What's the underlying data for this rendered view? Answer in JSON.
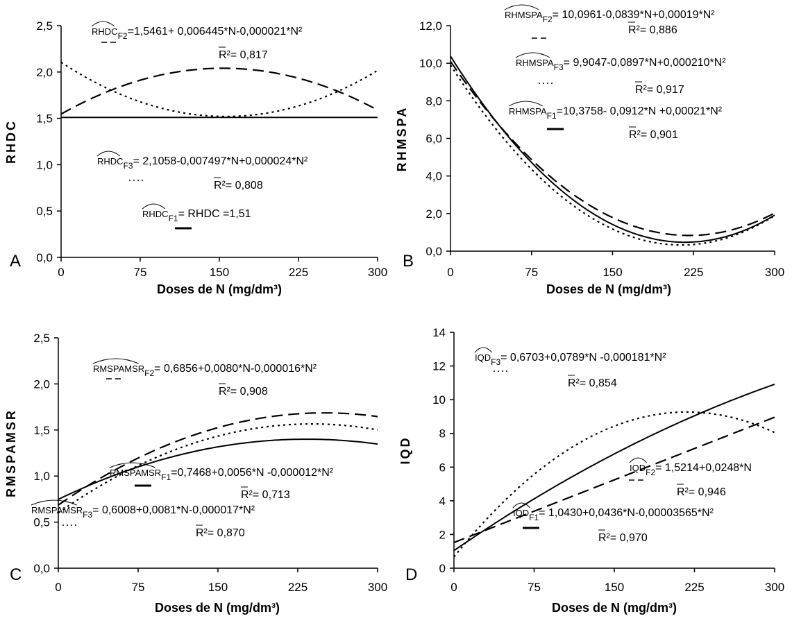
{
  "figure": {
    "xlabel": "Doses de N (mg/dm³)"
  },
  "chart_data": [
    {
      "panel": "A",
      "type": "line",
      "ylabel": "RHDC",
      "xlim": [
        0,
        300
      ],
      "ylim": [
        0,
        2.5
      ],
      "xticks": [
        "0",
        "75",
        "150",
        "225",
        "300"
      ],
      "yticks": [
        "0,0",
        "0,5",
        "1,0",
        "1,5",
        "2,0",
        "2,5"
      ],
      "xlabel": "Doses de N (mg/dm³)",
      "series": [
        {
          "name": "F1",
          "style": "solid",
          "coef": [
            1.51,
            0,
            0
          ]
        },
        {
          "name": "F2",
          "style": "dashed",
          "coef": [
            1.5461,
            0.006445,
            -2.1e-05
          ]
        },
        {
          "name": "F3",
          "style": "dotted",
          "coef": [
            2.1058,
            -0.007497,
            2.4e-05
          ]
        }
      ],
      "annotations": [
        {
          "series": "F2",
          "hat": "RHDC",
          "sub": "F2",
          "eq": "=1,5461+ 0,006445*N-0,000021*N²",
          "r2": "= 0,817"
        },
        {
          "series": "F3",
          "hat": "RHDC",
          "sub": "F3",
          "eq": "= 2,1058-0,007497*N+0,000024*N²",
          "r2": "= 0,808"
        },
        {
          "series": "F1",
          "hat": "RHDC",
          "sub": "F1",
          "eq": "= RHDC =1,51"
        }
      ]
    },
    {
      "panel": "B",
      "type": "line",
      "ylabel": "RHMSPA",
      "xlim": [
        0,
        300
      ],
      "ylim": [
        0,
        12
      ],
      "xticks": [
        "0",
        "75",
        "150",
        "225",
        "300"
      ],
      "yticks": [
        "0,0",
        "2,0",
        "4,0",
        "6,0",
        "8,0",
        "10,0",
        "12,0"
      ],
      "xlabel": "Doses de N (mg/dm³)",
      "series": [
        {
          "name": "F1",
          "style": "solid",
          "coef": [
            10.3758,
            -0.0912,
            0.00021
          ]
        },
        {
          "name": "F2",
          "style": "dashed",
          "coef": [
            10.0961,
            -0.0839,
            0.00019
          ]
        },
        {
          "name": "F3",
          "style": "dotted",
          "coef": [
            9.9047,
            -0.0897,
            0.00021
          ]
        }
      ],
      "annotations": [
        {
          "series": "F2",
          "hat": "RHMSPA",
          "sub": "F2",
          "eq": "= 10,0961-0,0839*N+0,00019*N²",
          "r2": "= 0,886"
        },
        {
          "series": "F3",
          "hat": "RHMSPA",
          "sub": "F3",
          "eq": "= 9,9047-0,0897*N+0,000210*N²",
          "r2": "= 0,917"
        },
        {
          "series": "F1",
          "hat": "RHMSPA",
          "sub": "F1",
          "eq": "=10,3758- 0,0912*N +0,00021*N²",
          "r2": "= 0,901"
        }
      ]
    },
    {
      "panel": "C",
      "type": "line",
      "ylabel": "RMSPAMSR",
      "xlim": [
        0,
        300
      ],
      "ylim": [
        0,
        2.5
      ],
      "xticks": [
        "0",
        "75",
        "150",
        "225",
        "300"
      ],
      "yticks": [
        "0,0",
        "0,5",
        "1,0",
        "1,5",
        "2,0",
        "2,5"
      ],
      "xlabel": "Doses de N (mg/dm³)",
      "series": [
        {
          "name": "F1",
          "style": "solid",
          "coef": [
            0.7468,
            0.0056,
            -1.2e-05
          ]
        },
        {
          "name": "F2",
          "style": "dashed",
          "coef": [
            0.6856,
            0.008,
            -1.6e-05
          ]
        },
        {
          "name": "F3",
          "style": "dotted",
          "coef": [
            0.6008,
            0.0081,
            -1.7e-05
          ]
        }
      ],
      "annotations": [
        {
          "series": "F2",
          "hat": "RMSPAMSR",
          "sub": "F2",
          "eq": "= 0,6856+0,0080*N-0,000016*N²",
          "r2": "= 0,908"
        },
        {
          "series": "F1",
          "hat": "RMSPAMSR",
          "sub": "F1",
          "eq": "=0,7468+0,0056*N -0,000012*N²",
          "r2": "= 0,713"
        },
        {
          "series": "F3",
          "hat": "RMSPAMSR",
          "sub": "F3",
          "eq": "= 0,6008+0,0081*N-0,000017*N²",
          "r2": "= 0,870"
        }
      ]
    },
    {
      "panel": "D",
      "type": "line",
      "ylabel": "IQD",
      "xlim": [
        0,
        300
      ],
      "ylim": [
        0,
        14
      ],
      "xticks": [
        "0",
        "75",
        "150",
        "225",
        "300"
      ],
      "yticks": [
        "0",
        "2",
        "4",
        "6",
        "8",
        "10",
        "12",
        "14"
      ],
      "xlabel": "Doses de N (mg/dm³)",
      "series": [
        {
          "name": "F1",
          "style": "solid",
          "coef": [
            1.043,
            0.0436,
            -3.565e-05
          ]
        },
        {
          "name": "F2",
          "style": "dashed",
          "coef": [
            1.5214,
            0.0248,
            0
          ]
        },
        {
          "name": "F3",
          "style": "dotted",
          "coef": [
            0.6703,
            0.0789,
            -0.000181
          ]
        }
      ],
      "annotations": [
        {
          "series": "F3",
          "hat": "IQD",
          "sub": "F3",
          "eq": "= 0,6703+0,0789*N -0,000181*N²",
          "r2": "= 0,854"
        },
        {
          "series": "F2",
          "hat": "IQD",
          "sub": "F2",
          "eq": "= 1,5214+0,0248*N",
          "r2": "= 0,946"
        },
        {
          "series": "F1",
          "hat": "IQD",
          "sub": "F1",
          "eq": "= 1,0430+0,0436*N-0,00003565*N²",
          "r2": "= 0,970"
        }
      ]
    }
  ]
}
